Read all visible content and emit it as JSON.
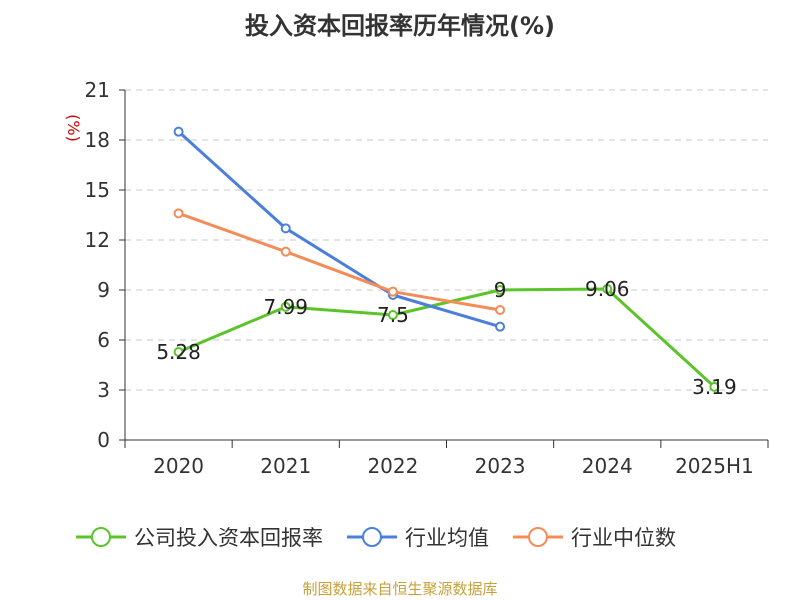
{
  "chart_data": {
    "type": "line",
    "title": "投入资本回报率历年情况(%)",
    "unit_label": "(%)",
    "categories": [
      "2020",
      "2021",
      "2022",
      "2023",
      "2024",
      "2025H1"
    ],
    "ylim": [
      0,
      21
    ],
    "yticks": [
      "0",
      "3",
      "6",
      "9",
      "12",
      "15",
      "18",
      "21"
    ],
    "grid": true,
    "legend_position": "bottom",
    "series": [
      {
        "name": "公司投入资本回报率",
        "color": "#5cc42b",
        "values": [
          5.28,
          7.99,
          7.5,
          9,
          9.06,
          3.19
        ],
        "labels": [
          "5.28",
          "7.99",
          "7.5",
          "9",
          "9.06",
          "3.19"
        ]
      },
      {
        "name": "行业均值",
        "color": "#4a7fdc",
        "values": [
          18.5,
          12.7,
          8.7,
          6.8,
          null,
          null
        ]
      },
      {
        "name": "行业中位数",
        "color": "#f58c58",
        "values": [
          13.6,
          11.3,
          8.9,
          7.8,
          null,
          null
        ]
      }
    ]
  },
  "footer": {
    "source": "制图数据来自恒生聚源数据库"
  }
}
